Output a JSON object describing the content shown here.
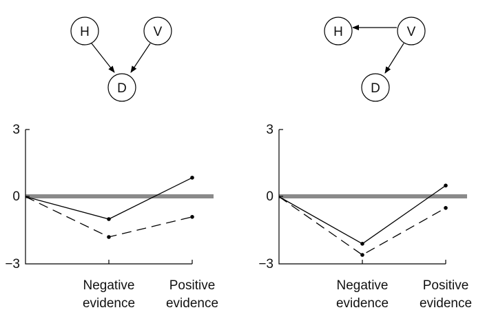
{
  "chart_data": [
    {
      "type": "line",
      "graph": {
        "nodes": [
          "H",
          "V",
          "D"
        ],
        "edges": [
          [
            "H",
            "D"
          ],
          [
            "V",
            "D"
          ]
        ]
      },
      "categories": [
        "",
        "Negative evidence",
        "Positive evidence"
      ],
      "category_lines": [
        [
          ""
        ],
        [
          "Negative",
          "evidence"
        ],
        [
          "Positive",
          "evidence"
        ]
      ],
      "ylim": [
        -3,
        3
      ],
      "yticks": [
        "3",
        "0",
        "−3"
      ],
      "ytick_values": [
        3,
        0,
        -3
      ],
      "zero_line_color": "#8a8a8a",
      "series": [
        {
          "style": "solid",
          "values": [
            0,
            -1.0,
            0.85
          ]
        },
        {
          "style": "dashed",
          "values": [
            0,
            -1.8,
            -0.9
          ]
        }
      ]
    },
    {
      "type": "line",
      "graph": {
        "nodes": [
          "H",
          "V",
          "D"
        ],
        "edges": [
          [
            "V",
            "H"
          ],
          [
            "V",
            "D"
          ]
        ]
      },
      "categories": [
        "",
        "Negative evidence",
        "Positive evidence"
      ],
      "category_lines": [
        [
          ""
        ],
        [
          "Negative",
          "evidence"
        ],
        [
          "Positive",
          "evidence"
        ]
      ],
      "ylim": [
        -3,
        3
      ],
      "yticks": [
        "3",
        "0",
        "−3"
      ],
      "ytick_values": [
        3,
        0,
        -3
      ],
      "zero_line_color": "#8a8a8a",
      "series": [
        {
          "style": "solid",
          "values": [
            0,
            -2.1,
            0.5
          ]
        },
        {
          "style": "dashed",
          "values": [
            0,
            -2.6,
            -0.5
          ]
        }
      ]
    }
  ]
}
